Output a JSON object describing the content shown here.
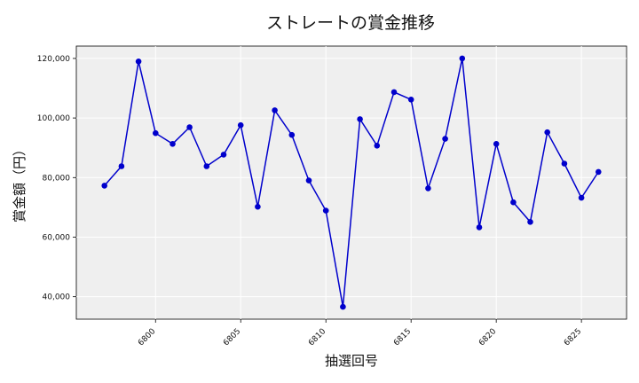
{
  "chart_data": {
    "type": "line",
    "title": "ストレートの賞金推移",
    "xlabel": "抽選回号",
    "ylabel": "賞金額（円）",
    "x": [
      6797,
      6798,
      6799,
      6800,
      6801,
      6802,
      6803,
      6804,
      6805,
      6806,
      6807,
      6808,
      6809,
      6810,
      6811,
      6812,
      6813,
      6814,
      6815,
      6816,
      6817,
      6818,
      6819,
      6820,
      6821,
      6822,
      6823,
      6824,
      6825,
      6826
    ],
    "series": [
      {
        "values": [
          77300,
          83800,
          119000,
          94900,
          91300,
          96900,
          83800,
          87700,
          97600,
          70200,
          102600,
          94300,
          79000,
          68900,
          36600,
          99600,
          90700,
          108700,
          106200,
          76400,
          93000,
          120000,
          63300,
          91300,
          71700,
          65100,
          95200,
          84700,
          73200,
          81900
        ]
      }
    ],
    "xticks": [
      "6800",
      "6805",
      "6810",
      "6815",
      "6820",
      "6825"
    ],
    "yticks": [
      "40,000",
      "60,000",
      "80,000",
      "100,000",
      "120,000"
    ],
    "xlim": [
      6795.35,
      6827.65
    ],
    "ylim": [
      32460,
      124140
    ],
    "grid": true,
    "color": "#0000cc",
    "plot_background": "#efefef"
  }
}
